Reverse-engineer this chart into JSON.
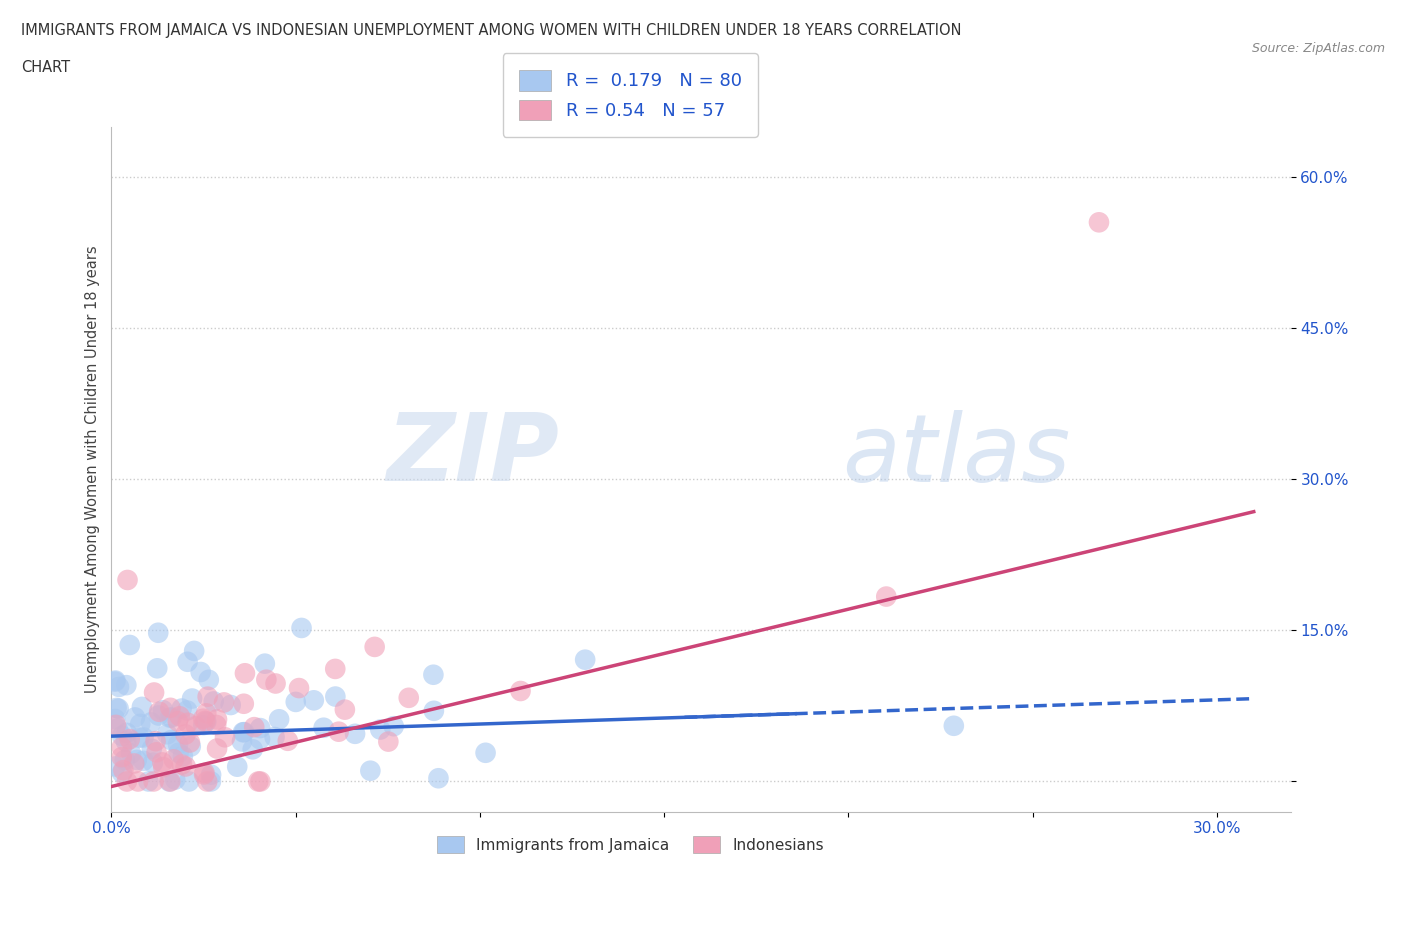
{
  "title_line1": "IMMIGRANTS FROM JAMAICA VS INDONESIAN UNEMPLOYMENT AMONG WOMEN WITH CHILDREN UNDER 18 YEARS CORRELATION",
  "title_line2": "CHART",
  "source": "Source: ZipAtlas.com",
  "ylabel": "Unemployment Among Women with Children Under 18 years",
  "xlim": [
    0.0,
    0.32
  ],
  "ylim": [
    -0.03,
    0.65
  ],
  "R_jamaica": 0.179,
  "N_jamaica": 80,
  "R_indonesian": 0.54,
  "N_indonesian": 57,
  "color_jamaica": "#a8c8f0",
  "color_indonesian": "#f0a0b8",
  "color_text_blue": "#2255cc",
  "color_line_jamaica": "#3366cc",
  "color_line_indonesian": "#cc4477",
  "watermark_zip": "ZIP",
  "watermark_atlas": "atlas",
  "legend_label_jamaica": "Immigrants from Jamaica",
  "legend_label_indonesian": "Indonesians"
}
